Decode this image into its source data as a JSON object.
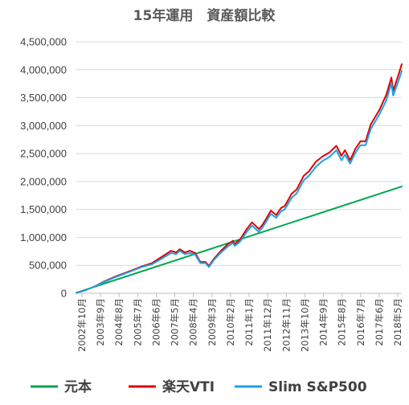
{
  "chart_data": {
    "type": "line",
    "title": "15年運用　資産額比較",
    "xlabel": "",
    "ylabel": "",
    "ylim": [
      0,
      4500000
    ],
    "y_ticks": [
      0,
      500000,
      1000000,
      1500000,
      2000000,
      2500000,
      3000000,
      3500000,
      4000000,
      4500000
    ],
    "y_tick_labels": [
      "0",
      "500,000",
      "1,000,000",
      "1,500,000",
      "2,000,000",
      "2,500,000",
      "3,000,000",
      "3,500,000",
      "4,000,000",
      "4,500,000"
    ],
    "x_tick_labels": [
      "2002年10月",
      "2003年9月",
      "2004年8月",
      "2005年7月",
      "2006年6月",
      "2007年5月",
      "2008年4月",
      "2009年3月",
      "2010年2月",
      "2011年1月",
      "2011年12月",
      "2012年11月",
      "2013年10月",
      "2014年9月",
      "2015年8月",
      "2016年7月",
      "2017年6月",
      "2018年5月"
    ],
    "x_range": [
      "2002-10",
      "2018-07"
    ],
    "grid": "horizontal",
    "legend": "bottom",
    "series": [
      {
        "name": "元本",
        "color": "#00a651",
        "points": [
          [
            "2002-10",
            10000
          ],
          [
            "2018-07",
            1910000
          ]
        ]
      },
      {
        "name": "楽天VTI",
        "color": "#e00000",
        "points": [
          [
            "2002-10",
            10000
          ],
          [
            "2003-03",
            50000
          ],
          [
            "2003-09",
            130000
          ],
          [
            "2004-02",
            210000
          ],
          [
            "2004-08",
            290000
          ],
          [
            "2005-01",
            350000
          ],
          [
            "2005-07",
            420000
          ],
          [
            "2005-12",
            480000
          ],
          [
            "2006-06",
            540000
          ],
          [
            "2006-11",
            640000
          ],
          [
            "2007-05",
            760000
          ],
          [
            "2007-08",
            730000
          ],
          [
            "2007-10",
            790000
          ],
          [
            "2008-01",
            730000
          ],
          [
            "2008-04",
            760000
          ],
          [
            "2008-07",
            720000
          ],
          [
            "2008-10",
            560000
          ],
          [
            "2009-01",
            560000
          ],
          [
            "2009-03",
            490000
          ],
          [
            "2009-06",
            620000
          ],
          [
            "2009-10",
            760000
          ],
          [
            "2010-02",
            880000
          ],
          [
            "2010-05",
            940000
          ],
          [
            "2010-06",
            880000
          ],
          [
            "2010-09",
            960000
          ],
          [
            "2011-01",
            1150000
          ],
          [
            "2011-04",
            1270000
          ],
          [
            "2011-08",
            1150000
          ],
          [
            "2011-10",
            1220000
          ],
          [
            "2011-12",
            1320000
          ],
          [
            "2012-03",
            1480000
          ],
          [
            "2012-06",
            1400000
          ],
          [
            "2012-09",
            1530000
          ],
          [
            "2012-11",
            1560000
          ],
          [
            "2013-03",
            1780000
          ],
          [
            "2013-06",
            1860000
          ],
          [
            "2013-10",
            2100000
          ],
          [
            "2014-01",
            2180000
          ],
          [
            "2014-05",
            2350000
          ],
          [
            "2014-09",
            2450000
          ],
          [
            "2015-01",
            2520000
          ],
          [
            "2015-05",
            2640000
          ],
          [
            "2015-08",
            2460000
          ],
          [
            "2015-10",
            2560000
          ],
          [
            "2016-01",
            2380000
          ],
          [
            "2016-04",
            2580000
          ],
          [
            "2016-07",
            2720000
          ],
          [
            "2016-10",
            2720000
          ],
          [
            "2017-01",
            3020000
          ],
          [
            "2017-06",
            3280000
          ],
          [
            "2017-10",
            3550000
          ],
          [
            "2018-01",
            3860000
          ],
          [
            "2018-02",
            3620000
          ],
          [
            "2018-05",
            3900000
          ],
          [
            "2018-07",
            4100000
          ]
        ]
      },
      {
        "name": "Slim S&P500",
        "color": "#1aa3e8",
        "points": [
          [
            "2002-10",
            10000
          ],
          [
            "2003-03",
            50000
          ],
          [
            "2003-09",
            125000
          ],
          [
            "2004-02",
            200000
          ],
          [
            "2004-08",
            280000
          ],
          [
            "2005-01",
            340000
          ],
          [
            "2005-07",
            410000
          ],
          [
            "2005-12",
            470000
          ],
          [
            "2006-06",
            520000
          ],
          [
            "2006-11",
            610000
          ],
          [
            "2007-05",
            720000
          ],
          [
            "2007-08",
            700000
          ],
          [
            "2007-10",
            760000
          ],
          [
            "2008-01",
            700000
          ],
          [
            "2008-04",
            720000
          ],
          [
            "2008-07",
            690000
          ],
          [
            "2008-10",
            540000
          ],
          [
            "2009-01",
            540000
          ],
          [
            "2009-03",
            470000
          ],
          [
            "2009-06",
            600000
          ],
          [
            "2009-10",
            730000
          ],
          [
            "2010-02",
            840000
          ],
          [
            "2010-05",
            900000
          ],
          [
            "2010-06",
            850000
          ],
          [
            "2010-09",
            920000
          ],
          [
            "2011-01",
            1100000
          ],
          [
            "2011-04",
            1210000
          ],
          [
            "2011-08",
            1100000
          ],
          [
            "2011-10",
            1170000
          ],
          [
            "2011-12",
            1270000
          ],
          [
            "2012-03",
            1420000
          ],
          [
            "2012-06",
            1350000
          ],
          [
            "2012-09",
            1470000
          ],
          [
            "2012-11",
            1500000
          ],
          [
            "2013-03",
            1710000
          ],
          [
            "2013-06",
            1790000
          ],
          [
            "2013-10",
            2020000
          ],
          [
            "2014-01",
            2100000
          ],
          [
            "2014-05",
            2260000
          ],
          [
            "2014-09",
            2370000
          ],
          [
            "2015-01",
            2440000
          ],
          [
            "2015-05",
            2560000
          ],
          [
            "2015-08",
            2380000
          ],
          [
            "2015-10",
            2480000
          ],
          [
            "2016-01",
            2320000
          ],
          [
            "2016-04",
            2510000
          ],
          [
            "2016-07",
            2650000
          ],
          [
            "2016-10",
            2650000
          ],
          [
            "2017-01",
            2940000
          ],
          [
            "2017-06",
            3200000
          ],
          [
            "2017-10",
            3450000
          ],
          [
            "2018-01",
            3760000
          ],
          [
            "2018-02",
            3540000
          ],
          [
            "2018-05",
            3790000
          ],
          [
            "2018-07",
            3980000
          ]
        ]
      }
    ]
  }
}
